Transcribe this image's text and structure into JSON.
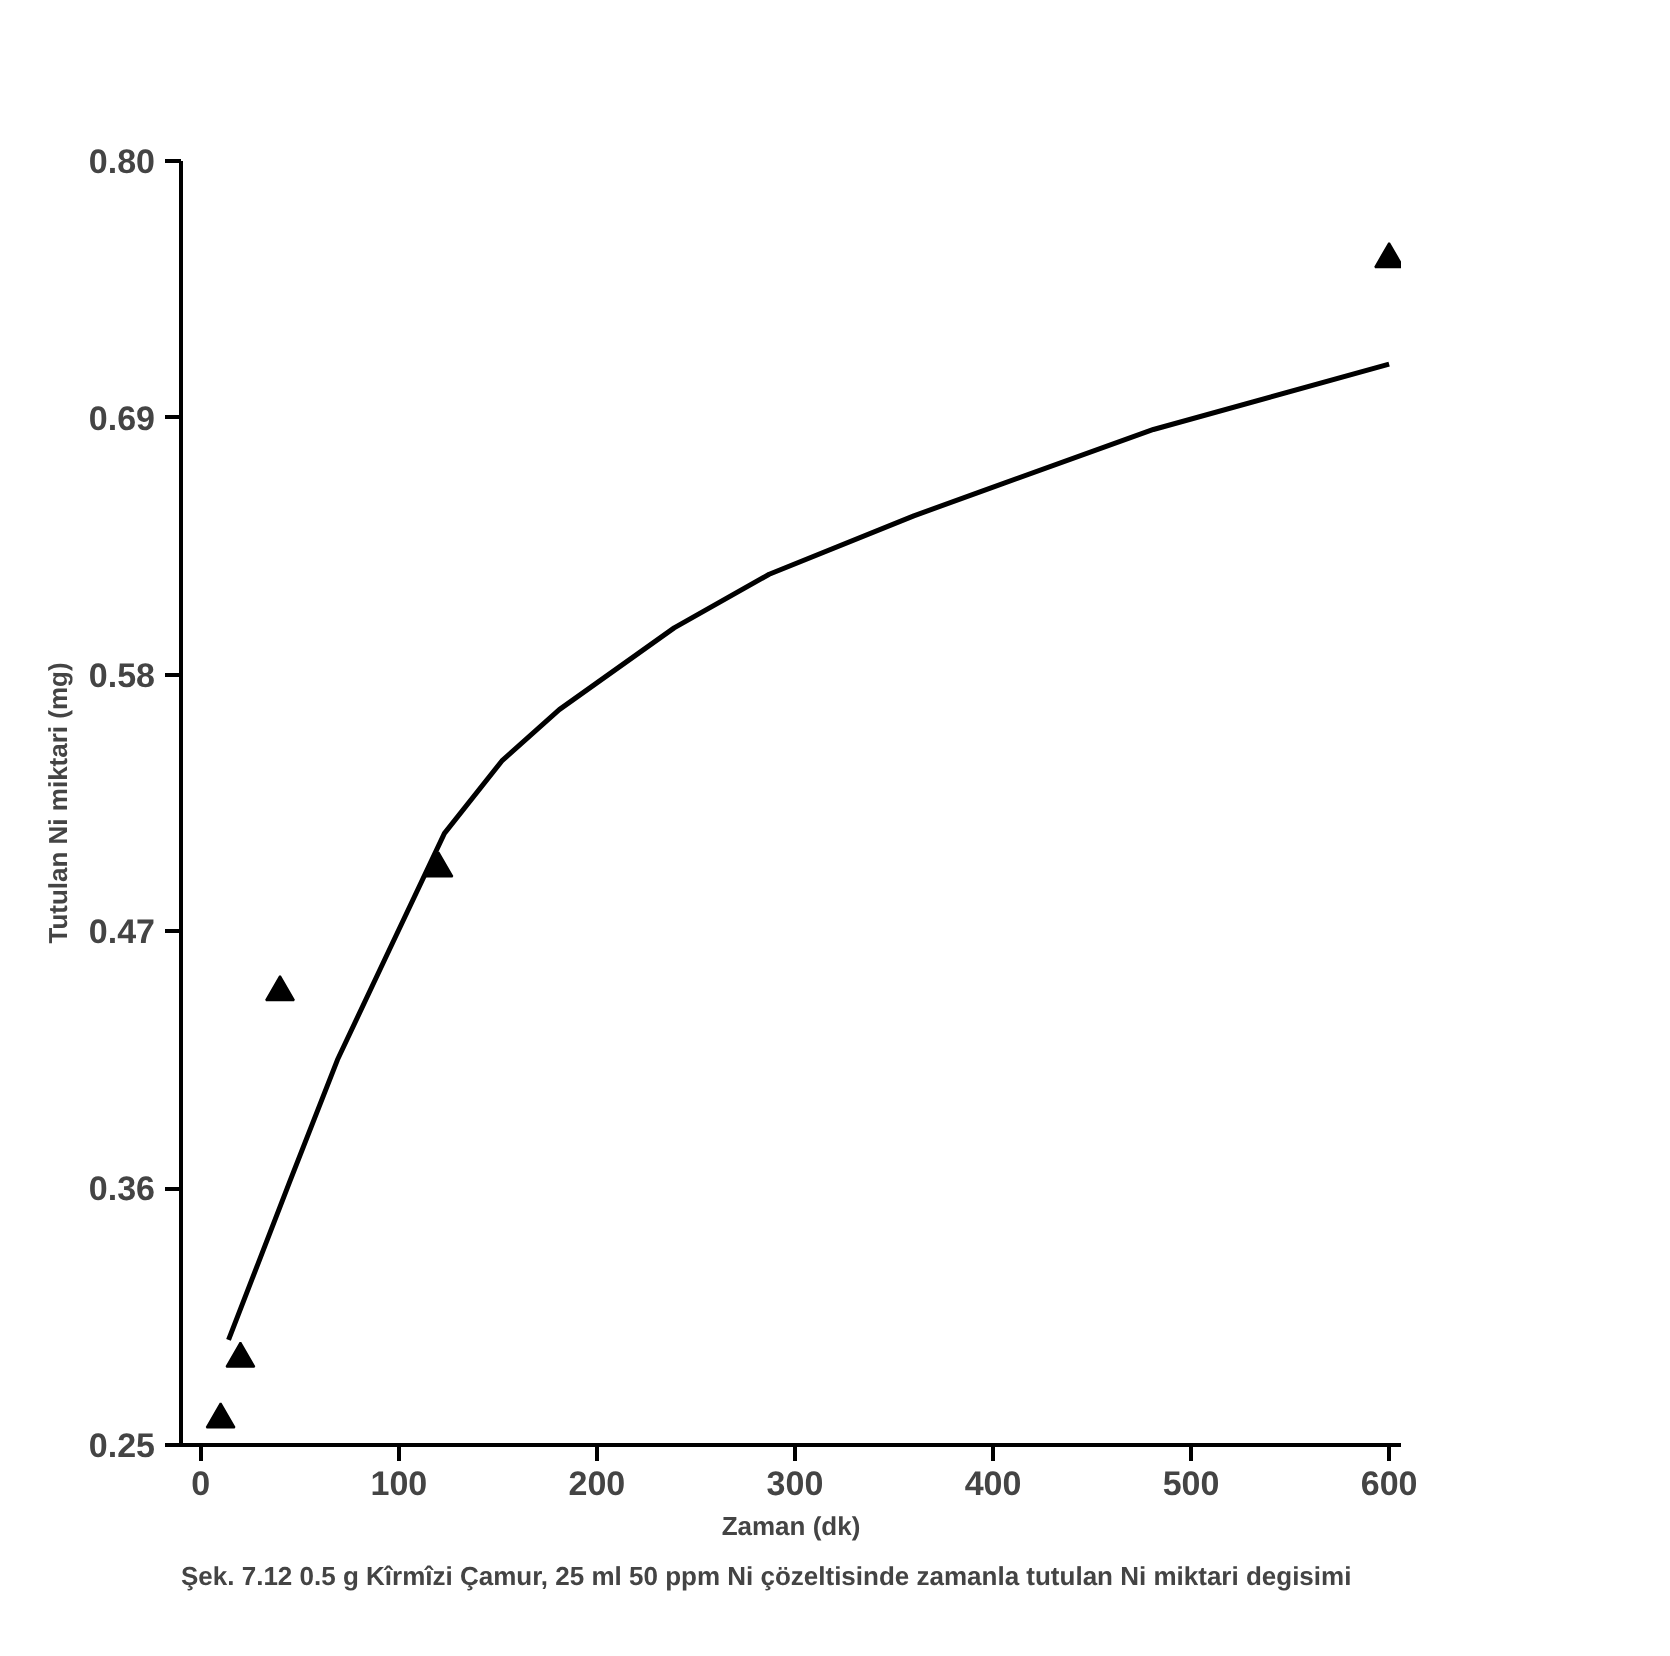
{
  "chart_data": {
    "type": "scatter",
    "xlabel": "Zaman (dk)",
    "ylabel": "Tutulan Ni miktari (mg)",
    "xlim": [
      -10,
      606
    ],
    "ylim": [
      0.25,
      0.8
    ],
    "xticks": [
      0,
      100,
      200,
      300,
      400,
      500,
      600
    ],
    "yticks": [
      0.25,
      0.36,
      0.47,
      0.58,
      0.69,
      {
        "value": 0.8,
        "label": "0.80"
      }
    ],
    "grid": false,
    "series": [
      {
        "marker": "triangle",
        "color": "#000000",
        "x": [
          10,
          20,
          40,
          120,
          600
        ],
        "values": [
          0.261,
          0.287,
          0.444,
          0.497,
          0.758
        ]
      },
      {
        "type": "line",
        "line_style": "solid",
        "marker": "none",
        "color": "#000000",
        "x": [
          14,
          45,
          69,
          94,
          123,
          152,
          181,
          239,
          287,
          360,
          399,
          481,
          600
        ],
        "values": [
          0.295,
          0.363,
          0.415,
          0.46,
          0.512,
          0.543,
          0.565,
          0.6,
          0.623,
          0.648,
          0.66,
          0.685,
          0.713
        ]
      }
    ],
    "annotations": [
      "Şek. 7.12 0.5 g Kîrmîzi Çamur, 25 ml 50 ppm Ni çözeltisinde zamanla tutulan Ni miktari degisimi"
    ]
  }
}
